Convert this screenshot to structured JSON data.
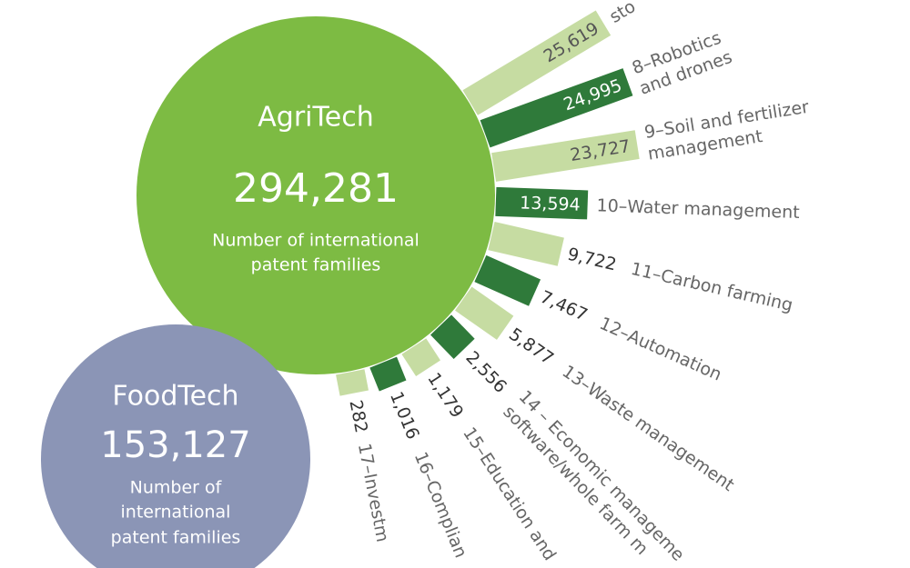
{
  "chart_data": {
    "type": "radial_bar",
    "categories": [
      [
        "sto"
      ],
      [
        "8–Robotics",
        "and drones"
      ],
      [
        "9–Soil and fertilizer",
        "management"
      ],
      [
        "10–Water management"
      ],
      [
        "11–Carbon farming"
      ],
      [
        "12–Automation"
      ],
      [
        "13–Waste management"
      ],
      [
        "14 – Economic manageme",
        "software/whole farm m"
      ],
      [
        "15–Education and"
      ],
      [
        "16–Complian"
      ],
      [
        "17–Investm"
      ]
    ],
    "values": [
      25619,
      24995,
      23727,
      13594,
      9722,
      7467,
      5877,
      2556,
      1179,
      1016,
      282
    ],
    "value_labels": [
      "25,619",
      "24,995",
      "23,727",
      "13,594",
      "9,722",
      "7,467",
      "5,877",
      "2,556",
      "1,179",
      "1,016",
      "282"
    ],
    "colors": [
      "#c6dca2",
      "#2f7a3a"
    ],
    "hubs": [
      {
        "title": "AgriTech",
        "value": 294281,
        "value_label": "294,281",
        "caption": [
          "Number of international",
          "patent families"
        ],
        "color": "#7dbb43"
      },
      {
        "title": "FoodTech",
        "value": 153127,
        "value_label": "153,127",
        "caption": [
          "Number of",
          "international",
          "patent families"
        ],
        "color": "#8b95b6"
      }
    ]
  }
}
